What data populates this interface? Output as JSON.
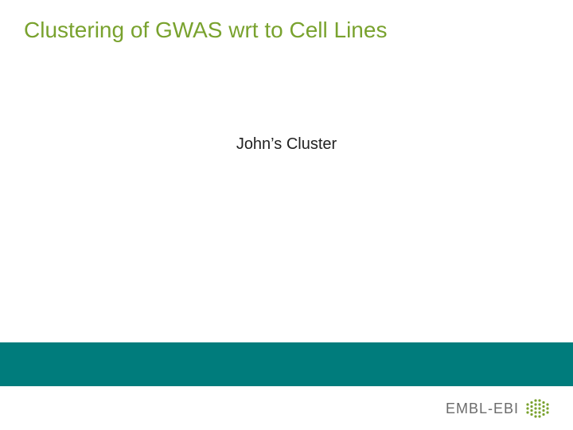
{
  "title": {
    "text": "Clustering of GWAS wrt to Cell Lines",
    "color": "#79a22e",
    "fontsize": 28
  },
  "subtitle": {
    "text": "John’s Cluster",
    "color": "#222222",
    "fontsize": 20
  },
  "footer": {
    "band_color": "#007c7c",
    "band_height": 55
  },
  "logo": {
    "text": "EMBL-EBI",
    "text_color": "#6b6b6b",
    "dot_color": "#79a22e",
    "dot_radius": 1.6,
    "spacing": 5
  },
  "background_color": "#ffffff"
}
